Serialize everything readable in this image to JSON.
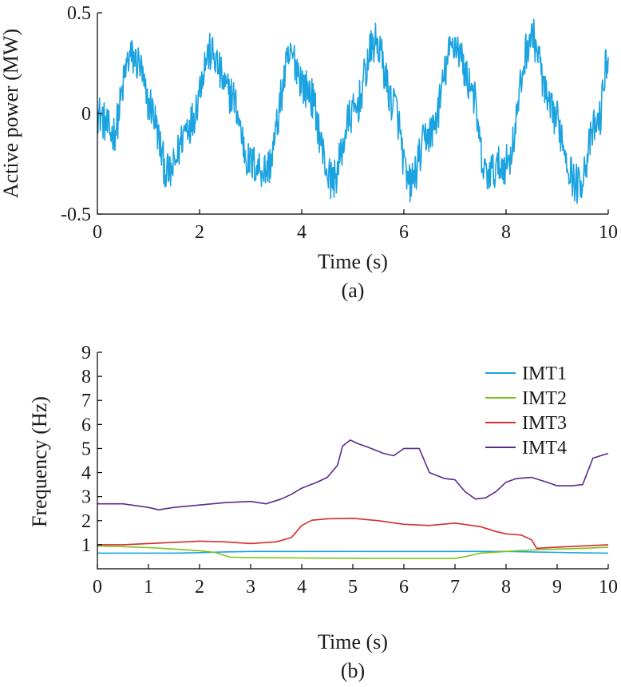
{
  "chart_data": [
    {
      "id": "a",
      "type": "line",
      "caption": "(a)",
      "xlabel": "Time (s)",
      "ylabel": "Active power (MW)",
      "xlim": [
        0,
        10
      ],
      "ylim": [
        -0.5,
        0.5
      ],
      "xticks": [
        "0",
        "2",
        "4",
        "6",
        "8",
        "10"
      ],
      "yticks": [
        "-0.5",
        "0",
        "0.5"
      ],
      "grid": false,
      "series": [
        {
          "color": "#1aa3e0",
          "description_values": {
            "x": [
              0.0,
              0.3,
              0.65,
              0.8,
              1.0,
              1.4,
              1.8,
              2.2,
              2.6,
              3.0,
              3.3,
              3.8,
              4.1,
              4.6,
              5.0,
              5.45,
              5.8,
              6.1,
              6.5,
              7.0,
              7.3,
              7.6,
              8.0,
              8.5,
              8.9,
              9.4,
              9.8,
              10.0
            ],
            "y": [
              0.0,
              -0.1,
              0.28,
              0.25,
              0.05,
              -0.3,
              -0.05,
              0.3,
              0.1,
              -0.25,
              -0.28,
              0.28,
              0.12,
              -0.33,
              0.0,
              0.35,
              0.05,
              -0.35,
              -0.1,
              0.35,
              0.15,
              -0.3,
              -0.25,
              0.38,
              0.0,
              -0.35,
              -0.05,
              0.28
            ]
          }
        }
      ]
    },
    {
      "id": "b",
      "type": "line",
      "caption": "(b)",
      "xlabel": "Time (s)",
      "ylabel": "Frequency (Hz)",
      "xlim": [
        0,
        10
      ],
      "ylim": [
        0,
        9
      ],
      "xticks": [
        "0",
        "1",
        "2",
        "3",
        "4",
        "5",
        "6",
        "7",
        "8",
        "9",
        "10"
      ],
      "yticks": [
        "1",
        "2",
        "3",
        "4",
        "5",
        "6",
        "7",
        "8",
        "9"
      ],
      "grid": false,
      "legend": "top-right",
      "series": [
        {
          "name": "IMT1",
          "color": "#1aa3e0",
          "x": [
            0,
            0.5,
            1,
            1.5,
            2,
            2.5,
            3,
            3.5,
            4,
            5,
            6,
            7,
            7.5,
            8,
            8.5,
            9,
            9.5,
            10
          ],
          "y": [
            0.65,
            0.65,
            0.65,
            0.65,
            0.67,
            0.7,
            0.72,
            0.72,
            0.72,
            0.72,
            0.72,
            0.72,
            0.72,
            0.72,
            0.7,
            0.68,
            0.66,
            0.65
          ]
        },
        {
          "name": "IMT2",
          "color": "#7bc21a",
          "x": [
            0,
            0.5,
            1,
            1.5,
            2,
            2.3,
            2.6,
            3,
            4,
            5,
            6,
            7,
            7.2,
            7.5,
            8,
            8.5,
            9,
            9.5,
            10
          ],
          "y": [
            0.95,
            0.92,
            0.88,
            0.82,
            0.75,
            0.68,
            0.48,
            0.46,
            0.45,
            0.44,
            0.43,
            0.43,
            0.5,
            0.65,
            0.72,
            0.78,
            0.82,
            0.85,
            0.9
          ]
        },
        {
          "name": "IMT3",
          "color": "#d42d2d",
          "x": [
            0,
            0.5,
            1,
            1.5,
            2,
            2.5,
            3,
            3.5,
            3.8,
            4.0,
            4.2,
            4.5,
            5.0,
            5.5,
            6.0,
            6.5,
            7.0,
            7.5,
            7.8,
            8.0,
            8.3,
            8.5,
            8.6,
            9.0,
            9.5,
            10.0
          ],
          "y": [
            1.0,
            1.0,
            1.05,
            1.1,
            1.15,
            1.12,
            1.05,
            1.12,
            1.3,
            1.8,
            2.02,
            2.08,
            2.1,
            2.0,
            1.85,
            1.8,
            1.9,
            1.75,
            1.55,
            1.45,
            1.4,
            1.2,
            0.85,
            0.9,
            0.95,
            1.0
          ]
        },
        {
          "name": "IMT4",
          "color": "#5a2a8c",
          "x": [
            0,
            0.5,
            1,
            1.2,
            1.5,
            2,
            2.5,
            3,
            3.3,
            3.6,
            3.8,
            4.0,
            4.3,
            4.5,
            4.7,
            4.8,
            4.95,
            5.1,
            5.3,
            5.6,
            5.8,
            6.0,
            6.3,
            6.5,
            6.8,
            7.0,
            7.2,
            7.4,
            7.6,
            7.8,
            8.0,
            8.2,
            8.5,
            8.8,
            9.0,
            9.3,
            9.5,
            9.7,
            10.0
          ],
          "y": [
            2.7,
            2.7,
            2.55,
            2.45,
            2.55,
            2.65,
            2.75,
            2.8,
            2.7,
            2.9,
            3.1,
            3.35,
            3.6,
            3.8,
            4.3,
            5.1,
            5.35,
            5.2,
            5.05,
            4.8,
            4.7,
            5.0,
            5.0,
            4.0,
            3.75,
            3.7,
            3.2,
            2.9,
            2.95,
            3.2,
            3.6,
            3.75,
            3.8,
            3.6,
            3.45,
            3.45,
            3.5,
            4.6,
            4.8
          ]
        }
      ]
    }
  ]
}
